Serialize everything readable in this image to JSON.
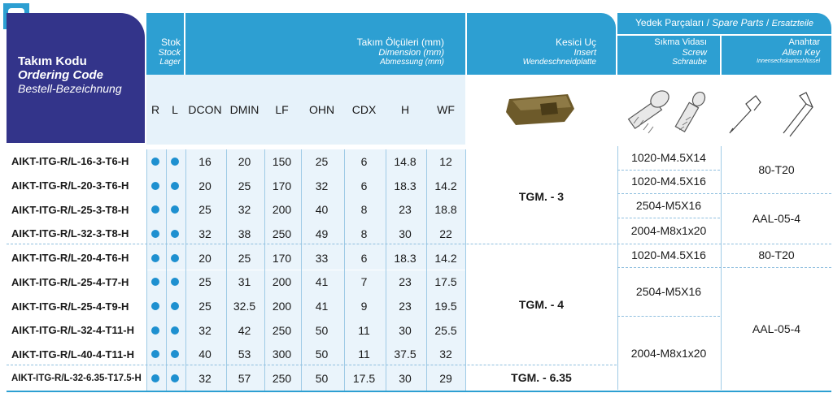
{
  "header": {
    "code": {
      "tr": "Takım Kodu",
      "en": "Ordering Code",
      "de": "Bestell-Bezeichnung"
    },
    "stock": {
      "tr": "Stok",
      "en": "Stock",
      "de": "Lager"
    },
    "dim": {
      "tr": "Takım Ölçüleri (mm)",
      "en": "Dimension (mm)",
      "de": "Abmessung (mm)"
    },
    "insert": {
      "tr": "Kesici Uç",
      "en": "Insert",
      "de": "Wendeschneidplatte"
    },
    "spare": {
      "tr": "Yedek Parçaları",
      "sep": " / ",
      "en": "Spare Parts",
      "de": "Ersatzteile"
    },
    "screw": {
      "tr": "Sıkma Vidası",
      "en": "Screw",
      "de": "Schraube"
    },
    "key": {
      "tr": "Anahtar",
      "en": "Allen Key",
      "de": "Innensechskantschlüssel"
    }
  },
  "columns": [
    "R",
    "L",
    "DCON",
    "DMIN",
    "LF",
    "OHN",
    "CDX",
    "H",
    "WF"
  ],
  "rows": [
    {
      "code": "AIKT-ITG-R/L-16-3-T6-H",
      "vals": [
        "16",
        "20",
        "150",
        "25",
        "6",
        "14.8",
        "12"
      ]
    },
    {
      "code": "AIKT-ITG-R/L-20-3-T6-H",
      "vals": [
        "20",
        "25",
        "170",
        "32",
        "6",
        "18.3",
        "14.2"
      ]
    },
    {
      "code": "AIKT-ITG-R/L-25-3-T8-H",
      "vals": [
        "25",
        "32",
        "200",
        "40",
        "8",
        "23",
        "18.8"
      ]
    },
    {
      "code": "AIKT-ITG-R/L-32-3-T8-H",
      "vals": [
        "32",
        "38",
        "250",
        "49",
        "8",
        "30",
        "22"
      ]
    },
    {
      "code": "AIKT-ITG-R/L-20-4-T6-H",
      "vals": [
        "20",
        "25",
        "170",
        "33",
        "6",
        "18.3",
        "14.2"
      ]
    },
    {
      "code": "AIKT-ITG-R/L-25-4-T7-H",
      "vals": [
        "25",
        "31",
        "200",
        "41",
        "7",
        "23",
        "17.5"
      ]
    },
    {
      "code": "AIKT-ITG-R/L-25-4-T9-H",
      "vals": [
        "25",
        "32.5",
        "200",
        "41",
        "9",
        "23",
        "19.5"
      ]
    },
    {
      "code": "AIKT-ITG-R/L-32-4-T11-H",
      "vals": [
        "32",
        "42",
        "250",
        "50",
        "11",
        "30",
        "25.5"
      ]
    },
    {
      "code": "AIKT-ITG-R/L-40-4-T11-H",
      "vals": [
        "40",
        "53",
        "300",
        "50",
        "11",
        "37.5",
        "32"
      ]
    },
    {
      "code": "AIKT-ITG-R/L-32-6.35-T17.5-H",
      "vals": [
        "32",
        "57",
        "250",
        "50",
        "17.5",
        "30",
        "29"
      ]
    }
  ],
  "inserts": [
    "TGM. - 3",
    "TGM. - 4",
    "TGM. - 6.35"
  ],
  "screws": [
    "1020-M4.5X14",
    "1020-M4.5X16",
    "2504-M5X16",
    "2004-M8x1x20",
    "1020-M4.5X16",
    "2504-M5X16",
    "2004-M8x1x20"
  ],
  "keys": [
    "80-T20",
    "AAL-05-4",
    "80-T20",
    "AAL-05-4"
  ],
  "colors": {
    "header_blue": "#2d9fd2",
    "code_navy": "#33348a",
    "stock_dot": "#1e90d0",
    "light_band": "#e6f2fa"
  }
}
